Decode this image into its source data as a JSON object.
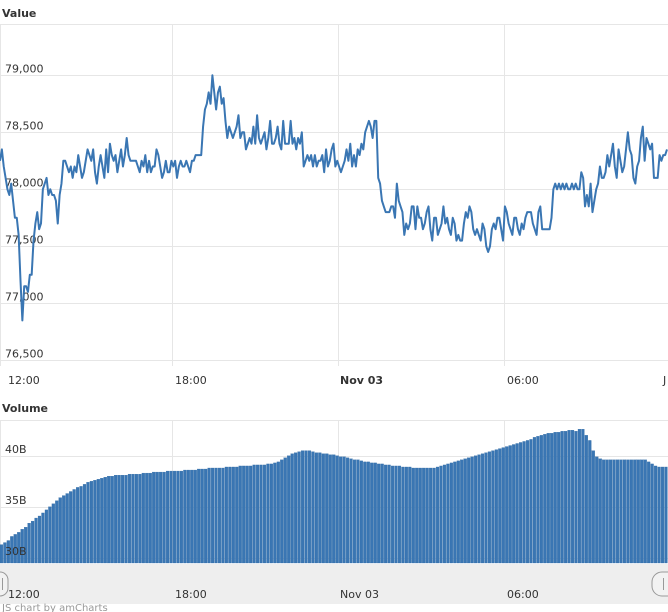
{
  "chart_data": [
    {
      "type": "line",
      "title": "Value",
      "x_tick_labels": [
        "12:00",
        "18:00",
        "Nov 03",
        "06:00",
        "J"
      ],
      "y_ticks": [
        76500,
        77000,
        77500,
        78000,
        78500,
        79000
      ],
      "y_tick_labels": [
        "76,500",
        "77,000",
        "77,500",
        "78,000",
        "78,500",
        "79,000"
      ],
      "ylim": [
        76450,
        79450
      ],
      "color": "#3a76b3",
      "values": [
        78250,
        78350,
        78200,
        78100,
        78000,
        77950,
        78050,
        77900,
        77750,
        77750,
        77600,
        77200,
        76850,
        77150,
        77150,
        77100,
        77250,
        77250,
        77550,
        77700,
        77800,
        77650,
        77700,
        78000,
        78050,
        78100,
        77950,
        78000,
        77950,
        77950,
        77900,
        77700,
        77950,
        78050,
        78250,
        78250,
        78200,
        78150,
        78200,
        78100,
        78200,
        78150,
        78300,
        78200,
        78100,
        78150,
        78250,
        78350,
        78300,
        78250,
        78350,
        78150,
        78050,
        78200,
        78300,
        78200,
        78100,
        78350,
        78150,
        78400,
        78300,
        78250,
        78300,
        78150,
        78250,
        78350,
        78200,
        78300,
        78450,
        78300,
        78250,
        78250,
        78250,
        78250,
        78200,
        78150,
        78250,
        78200,
        78300,
        78150,
        78250,
        78150,
        78200,
        78200,
        78350,
        78300,
        78200,
        78100,
        78150,
        78250,
        78150,
        78150,
        78250,
        78200,
        78250,
        78100,
        78200,
        78250,
        78200,
        78200,
        78250,
        78200,
        78150,
        78250,
        78250,
        78300,
        78300,
        78300,
        78300,
        78550,
        78700,
        78750,
        78850,
        78750,
        79000,
        78850,
        78700,
        78850,
        78900,
        78750,
        78800,
        78600,
        78450,
        78550,
        78500,
        78450,
        78500,
        78550,
        78650,
        78450,
        78500,
        78500,
        78350,
        78400,
        78450,
        78400,
        78550,
        78400,
        78650,
        78450,
        78400,
        78450,
        78500,
        78350,
        78450,
        78600,
        78400,
        78400,
        78450,
        78550,
        78400,
        78350,
        78600,
        78400,
        78400,
        78400,
        78600,
        78400,
        78450,
        78350,
        78450,
        78400,
        78500,
        78200,
        78250,
        78300,
        78250,
        78300,
        78200,
        78300,
        78200,
        78250,
        78250,
        78300,
        78150,
        78350,
        78200,
        78250,
        78350,
        78400,
        78200,
        78250,
        78200,
        78150,
        78200,
        78250,
        78350,
        78250,
        78400,
        78200,
        78300,
        78200,
        78350,
        78300,
        78400,
        78350,
        78500,
        78550,
        78600,
        78550,
        78450,
        78600,
        78600,
        78100,
        78050,
        77900,
        77850,
        77800,
        77800,
        77800,
        77850,
        77850,
        77750,
        78050,
        77900,
        77850,
        77800,
        77600,
        77700,
        77650,
        77700,
        77850,
        77850,
        77650,
        77850,
        77750,
        77750,
        77650,
        77700,
        77800,
        77850,
        77650,
        77550,
        77750,
        77750,
        77600,
        77650,
        77700,
        77850,
        77700,
        77750,
        77650,
        77600,
        77750,
        77700,
        77550,
        77600,
        77550,
        77550,
        77700,
        77800,
        77750,
        77850,
        77800,
        77650,
        77600,
        77650,
        77600,
        77550,
        77700,
        77650,
        77500,
        77450,
        77500,
        77650,
        77700,
        77650,
        77750,
        77750,
        77650,
        77550,
        77850,
        77800,
        77700,
        77650,
        77600,
        77750,
        77750,
        77650,
        77600,
        77700,
        77650,
        77750,
        77800,
        77800,
        77800,
        77700,
        77650,
        77600,
        77800,
        77850,
        77650,
        77650,
        77650,
        77650,
        77650,
        77750,
        78000,
        78050,
        78000,
        78050,
        78000,
        78050,
        78000,
        78050,
        78000,
        78000,
        78050,
        78000,
        78050,
        78000,
        78000,
        78150,
        78100,
        77850,
        77950,
        77850,
        78050,
        77800,
        77900,
        78000,
        78050,
        78200,
        78100,
        78100,
        78150,
        78300,
        78200,
        78300,
        78400,
        78200,
        78100,
        78350,
        78250,
        78150,
        78200,
        78350,
        78500,
        78350,
        78300,
        78100,
        78050,
        78200,
        78250,
        78450,
        78550,
        78250,
        78450,
        78400,
        78350,
        78400,
        78100,
        78100,
        78100,
        78300,
        78250,
        78300,
        78300,
        78350
      ]
    },
    {
      "type": "bar",
      "title": "Volume",
      "x_tick_labels": [
        "12:00",
        "18:00",
        "Nov 03",
        "06:00"
      ],
      "y_ticks": [
        30,
        35,
        40
      ],
      "y_tick_labels": [
        "30B",
        "35B",
        "40B"
      ],
      "unit": "B",
      "ylim": [
        29.5,
        43.5
      ],
      "color": "#3a76b3",
      "values": [
        31.3,
        31.5,
        31.7,
        32.1,
        32.3,
        32.5,
        32.8,
        33.0,
        33.4,
        33.6,
        33.9,
        34.1,
        34.4,
        34.7,
        35.0,
        35.3,
        35.6,
        35.9,
        36.1,
        36.3,
        36.5,
        36.7,
        36.9,
        37.0,
        37.2,
        37.4,
        37.5,
        37.6,
        37.7,
        37.8,
        37.9,
        38.0,
        38.0,
        38.1,
        38.1,
        38.1,
        38.1,
        38.2,
        38.2,
        38.2,
        38.2,
        38.3,
        38.3,
        38.3,
        38.4,
        38.4,
        38.4,
        38.4,
        38.5,
        38.5,
        38.5,
        38.5,
        38.5,
        38.6,
        38.6,
        38.6,
        38.6,
        38.7,
        38.7,
        38.7,
        38.8,
        38.8,
        38.8,
        38.8,
        38.8,
        38.9,
        38.9,
        38.9,
        38.9,
        39.0,
        39.0,
        39.0,
        39.0,
        39.1,
        39.1,
        39.1,
        39.1,
        39.2,
        39.2,
        39.3,
        39.4,
        39.6,
        39.8,
        40.0,
        40.2,
        40.3,
        40.4,
        40.5,
        40.5,
        40.5,
        40.4,
        40.3,
        40.3,
        40.2,
        40.2,
        40.1,
        40.1,
        40.0,
        39.9,
        39.9,
        39.8,
        39.7,
        39.6,
        39.6,
        39.5,
        39.4,
        39.4,
        39.3,
        39.3,
        39.2,
        39.2,
        39.1,
        39.1,
        39.0,
        39.0,
        39.0,
        38.9,
        38.9,
        38.9,
        38.8,
        38.8,
        38.8,
        38.8,
        38.8,
        38.8,
        38.8,
        38.9,
        39.0,
        39.1,
        39.2,
        39.3,
        39.4,
        39.5,
        39.6,
        39.7,
        39.8,
        39.9,
        40.0,
        40.1,
        40.2,
        40.3,
        40.4,
        40.5,
        40.6,
        40.7,
        40.8,
        40.9,
        41.0,
        41.1,
        41.2,
        41.3,
        41.4,
        41.5,
        41.6,
        41.8,
        41.9,
        42.0,
        42.1,
        42.2,
        42.2,
        42.3,
        42.3,
        42.4,
        42.4,
        42.5,
        42.5,
        42.4,
        42.6,
        42.6,
        42.0,
        41.5,
        40.5,
        39.9,
        39.7,
        39.6,
        39.6,
        39.6,
        39.6,
        39.6,
        39.6,
        39.6,
        39.6,
        39.6,
        39.6,
        39.6,
        39.6,
        39.6,
        39.4,
        39.2,
        39.0,
        38.9,
        38.9,
        38.9
      ]
    }
  ],
  "navigator": {
    "x_tick_labels": [
      "12:00",
      "18:00",
      "Nov 03",
      "06:00"
    ]
  },
  "footer": {
    "credit": "JS chart by amCharts"
  }
}
